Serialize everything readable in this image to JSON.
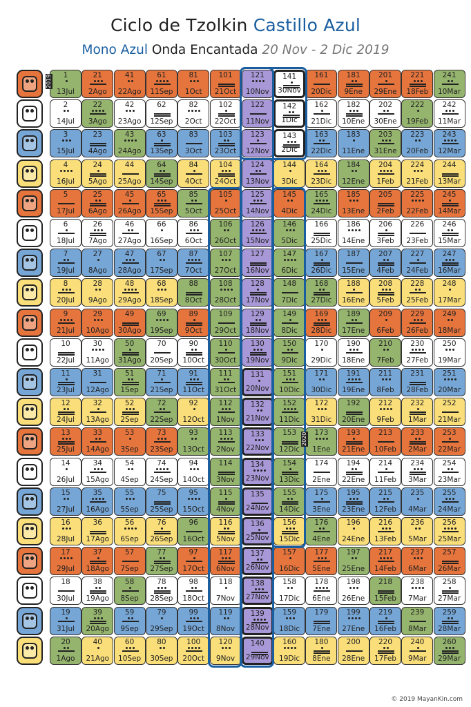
{
  "header": {
    "title_prefix": "Ciclo de Tzolkin",
    "title_accent": "Castillo Azul",
    "subtitle_accent": "Mono Azul",
    "subtitle_main": "Onda Encantada",
    "subtitle_dates": "20 Nov - 2 Dic 2019"
  },
  "footer": {
    "copyright": "© 2019 MayanKin.com"
  },
  "year_markers": [
    "2019",
    "2020"
  ],
  "colors": {
    "red": "#e5743d",
    "white": "#ffffff",
    "blue": "#76a6d6",
    "yellow": "#f9de7a",
    "green": "#95b46e",
    "purple": "#a998d7",
    "wave": "#1a5ea0"
  },
  "glyph_colors": [
    "red",
    "white",
    "blue",
    "yellow",
    "red",
    "white",
    "blue",
    "yellow",
    "red",
    "white",
    "blue",
    "yellow",
    "red",
    "white",
    "blue",
    "yellow",
    "red",
    "white",
    "blue",
    "yellow"
  ],
  "seals": [
    "dragon-icon",
    "wind-icon",
    "night-icon",
    "seed-icon",
    "serpent-icon",
    "worldbridger-icon",
    "hand-icon",
    "star-icon",
    "moon-icon",
    "dog-icon",
    "monkey-icon",
    "human-icon",
    "skywalker-icon",
    "wizard-icon",
    "eagle-icon",
    "warrior-icon",
    "earth-icon",
    "mirror-icon",
    "storm-icon",
    "sun-icon"
  ],
  "columns": [
    [
      "13Jul",
      "14Jul",
      "15Jul",
      "16Jul",
      "17Jul",
      "18Jul",
      "19Jul",
      "20Jul",
      "21Jul",
      "22Jul",
      "23Jul",
      "24Jul",
      "25Jul",
      "26Jul",
      "27Jul",
      "28Jul",
      "29Jul",
      "30Jul",
      "31Jul",
      "1Ago"
    ],
    [
      "2Ago",
      "3Ago",
      "4Ago",
      "5Ago",
      "6Ago",
      "7Ago",
      "8Ago",
      "9Ago",
      "10Ago",
      "11Ago",
      "12Ago",
      "13Ago",
      "14Ago",
      "15Ago",
      "16Ago",
      "17Ago",
      "18Ago",
      "19Ago",
      "20Ago",
      "21Ago"
    ],
    [
      "22Ago",
      "23Ago",
      "24Ago",
      "25Ago",
      "26Ago",
      "27Ago",
      "28Ago",
      "29Ago",
      "30Ago",
      "31Ago",
      "1Sep",
      "2Sep",
      "3Sep",
      "4Sep",
      "5Sep",
      "6Sep",
      "7Sep",
      "8Sep",
      "9Sep",
      "10Sep"
    ],
    [
      "11Sep",
      "12Sep",
      "13Sep",
      "14Sep",
      "15Sep",
      "16Sep",
      "17Sep",
      "18Sep",
      "19Sep",
      "20Sep",
      "21Sep",
      "22Sep",
      "23Sep",
      "24Sep",
      "25Sep",
      "26Sep",
      "27Sep",
      "28Sep",
      "29Sep",
      "30Sep"
    ],
    [
      "1Oct",
      "2Oct",
      "3Oct",
      "4Oct",
      "5Oct",
      "6Oct",
      "7Oct",
      "8Oct",
      "9Oct",
      "10Oct",
      "11Oct",
      "12Oct",
      "13Oct",
      "14Oct",
      "15Oct",
      "16Oct",
      "17Oct",
      "18Oct",
      "19Oct",
      "20Oct"
    ],
    [
      "21Oct",
      "22Oct",
      "23Oct",
      "24Oct",
      "25Oct",
      "26Oct",
      "27Oct",
      "28Oct",
      "29Oct",
      "30Oct",
      "31Oct",
      "1Nov",
      "2Nov",
      "3Nov",
      "4Nov",
      "5Nov",
      "6Nov",
      "7Nov",
      "8Nov",
      "9Nov"
    ],
    [
      "10Nov",
      "11Nov",
      "12Nov",
      "13Nov",
      "14Nov",
      "15Nov",
      "16Nov",
      "17Nov",
      "18Nov",
      "19Nov",
      "20Nov",
      "21Nov",
      "22Nov",
      "23Nov",
      "24Nov",
      "25Nov",
      "26Nov",
      "27Nov",
      "28Nov",
      "29Nov"
    ],
    [
      "30Nov",
      "1Dic",
      "2Dic",
      "3Dic",
      "4Dic",
      "5Dic",
      "6Dic",
      "7Dic",
      "8Dic",
      "9Dic",
      "10Dic",
      "11Dic",
      "12Dic",
      "13Dic",
      "14Dic",
      "15Dic",
      "16Dic",
      "17Dic",
      "18Dic",
      "19Dic"
    ],
    [
      "20Dic",
      "21Dic",
      "22Dic",
      "23Dic",
      "24Dic",
      "25Dic",
      "26Dic",
      "27Dic",
      "28Dic",
      "29Dic",
      "30Dic",
      "31Dic",
      "1Ene",
      "2Ene",
      "3Ene",
      "4Ene",
      "5Ene",
      "6Ene",
      "7Ene",
      "8Ene"
    ],
    [
      "9Ene",
      "10Ene",
      "11Ene",
      "12Ene",
      "13Ene",
      "14Ene",
      "15Ene",
      "16Ene",
      "17Ene",
      "18Ene",
      "19Ene",
      "20Ene",
      "21Ene",
      "22Ene",
      "23Ene",
      "24Ene",
      "25Ene",
      "26Ene",
      "27Ene",
      "28Ene"
    ],
    [
      "29Ene",
      "30Ene",
      "31Ene",
      "1Feb",
      "2Feb",
      "3Feb",
      "4Feb",
      "5Feb",
      "6Feb",
      "7Feb",
      "8Feb",
      "9Feb",
      "10Feb",
      "11Feb",
      "12Feb",
      "13Feb",
      "14Feb",
      "15Feb",
      "16Feb",
      "17Feb"
    ],
    [
      "18Feb",
      "19Feb",
      "20Feb",
      "21Feb",
      "22Feb",
      "23Feb",
      "24Feb",
      "25Feb",
      "26Feb",
      "27Feb",
      "28Feb",
      "1Mar",
      "2Mar",
      "3Mar",
      "4Mar",
      "5Mar",
      "6Mar",
      "7Mar",
      "8Mar",
      "9Mar"
    ],
    [
      "10Mar",
      "11Mar",
      "12Mar",
      "13Mar",
      "14Mar",
      "15Mar",
      "16Mar",
      "17Mar",
      "18Mar",
      "19Mar",
      "20Mar",
      "21Mar",
      "22Mar",
      "23Mar",
      "24Mar",
      "25Mar",
      "26Mar",
      "27Mar",
      "28Mar",
      "29Mar"
    ]
  ],
  "highlight_kins": [
    121,
    122,
    123,
    124,
    125,
    126,
    127,
    128,
    129,
    130,
    131,
    132,
    133,
    134,
    135,
    136,
    137,
    138,
    139,
    140,
    141,
    142,
    143
  ],
  "bold_kins": [
    131,
    132,
    133,
    134,
    135,
    136,
    137,
    138,
    139,
    140,
    141,
    142,
    143
  ],
  "green_kins": [
    1,
    20,
    22,
    39,
    43,
    50,
    51,
    58,
    64,
    69,
    72,
    77,
    85,
    88,
    93,
    96,
    106,
    107,
    108,
    109,
    110,
    111,
    112,
    113,
    114,
    115,
    146,
    147,
    148,
    149,
    150,
    151,
    152,
    153,
    154,
    155,
    165,
    168,
    173,
    176,
    184,
    189,
    192,
    197,
    203,
    210,
    218,
    222,
    239,
    241,
    260
  ]
}
